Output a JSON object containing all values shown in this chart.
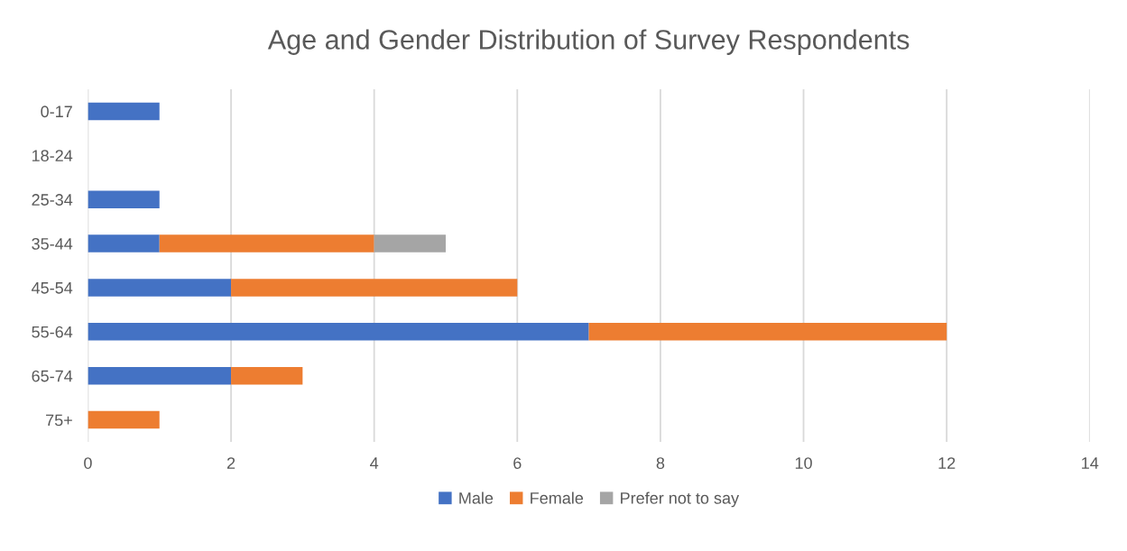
{
  "chart_data": {
    "type": "bar",
    "orientation": "horizontal",
    "stacked": true,
    "title": "Age and Gender Distribution of Survey Respondents",
    "categories": [
      "0-17",
      "18-24",
      "25-34",
      "35-44",
      "45-54",
      "55-64",
      "65-74",
      "75+"
    ],
    "series": [
      {
        "name": "Male",
        "color": "#4472c4",
        "values": [
          1,
          null,
          1,
          1,
          2,
          7,
          2,
          null
        ]
      },
      {
        "name": "Female",
        "color": "#ed7d31",
        "values": [
          null,
          null,
          null,
          3,
          4,
          5,
          1,
          1
        ]
      },
      {
        "name": "Prefer not to say",
        "color": "#a5a5a5",
        "values": [
          null,
          null,
          null,
          1,
          null,
          null,
          null,
          null
        ]
      }
    ],
    "xlim": [
      0,
      14
    ],
    "xticks": [
      0,
      2,
      4,
      6,
      8,
      10,
      12,
      14
    ],
    "grid": "x",
    "legend": "bottom"
  }
}
